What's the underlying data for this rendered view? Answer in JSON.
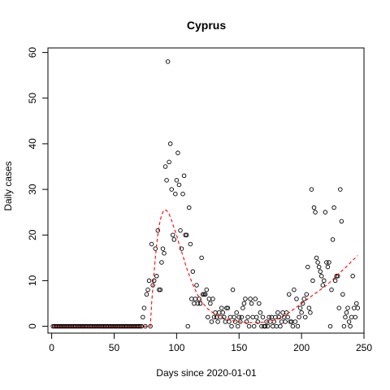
{
  "chart_data": {
    "type": "scatter",
    "title": "Cyprus",
    "xlabel": "Days since 2020-01-01",
    "ylabel": "Daily cases",
    "xlim": [
      -3,
      250
    ],
    "ylim": [
      -1.5,
      61
    ],
    "xticks": [
      0,
      50,
      100,
      150,
      200,
      250
    ],
    "yticks": [
      0,
      10,
      20,
      30,
      40,
      50,
      60
    ],
    "grid": false,
    "legend": "none",
    "colors": {
      "points": "#000000",
      "fit": "#ff0000",
      "axis": "#000000"
    },
    "series": [
      {
        "style": "points",
        "points": [
          [
            1,
            0
          ],
          [
            2,
            0
          ],
          [
            3,
            0
          ],
          [
            4,
            0
          ],
          [
            5,
            0
          ],
          [
            6,
            0
          ],
          [
            7,
            0
          ],
          [
            8,
            0
          ],
          [
            9,
            0
          ],
          [
            10,
            0
          ],
          [
            11,
            0
          ],
          [
            12,
            0
          ],
          [
            13,
            0
          ],
          [
            14,
            0
          ],
          [
            15,
            0
          ],
          [
            16,
            0
          ],
          [
            17,
            0
          ],
          [
            18,
            0
          ],
          [
            19,
            0
          ],
          [
            20,
            0
          ],
          [
            21,
            0
          ],
          [
            22,
            0
          ],
          [
            23,
            0
          ],
          [
            24,
            0
          ],
          [
            25,
            0
          ],
          [
            26,
            0
          ],
          [
            27,
            0
          ],
          [
            28,
            0
          ],
          [
            29,
            0
          ],
          [
            30,
            0
          ],
          [
            31,
            0
          ],
          [
            32,
            0
          ],
          [
            33,
            0
          ],
          [
            34,
            0
          ],
          [
            35,
            0
          ],
          [
            36,
            0
          ],
          [
            37,
            0
          ],
          [
            38,
            0
          ],
          [
            39,
            0
          ],
          [
            40,
            0
          ],
          [
            41,
            0
          ],
          [
            42,
            0
          ],
          [
            43,
            0
          ],
          [
            44,
            0
          ],
          [
            45,
            0
          ],
          [
            46,
            0
          ],
          [
            47,
            0
          ],
          [
            48,
            0
          ],
          [
            49,
            0
          ],
          [
            50,
            0
          ],
          [
            51,
            0
          ],
          [
            52,
            0
          ],
          [
            53,
            0
          ],
          [
            54,
            0
          ],
          [
            55,
            0
          ],
          [
            56,
            0
          ],
          [
            57,
            0
          ],
          [
            58,
            0
          ],
          [
            59,
            0
          ],
          [
            60,
            0
          ],
          [
            61,
            0
          ],
          [
            62,
            0
          ],
          [
            63,
            0
          ],
          [
            64,
            0
          ],
          [
            65,
            0
          ],
          [
            66,
            0
          ],
          [
            67,
            0
          ],
          [
            68,
            0
          ],
          [
            69,
            0
          ],
          [
            70,
            0
          ],
          [
            71,
            0
          ],
          [
            72,
            0
          ],
          [
            73,
            2
          ],
          [
            74,
            4
          ],
          [
            75,
            0
          ],
          [
            76,
            7
          ],
          [
            77,
            8
          ],
          [
            78,
            10
          ],
          [
            79,
            0
          ],
          [
            80,
            18
          ],
          [
            81,
            9
          ],
          [
            82,
            10
          ],
          [
            83,
            17
          ],
          [
            84,
            11
          ],
          [
            85,
            21
          ],
          [
            86,
            8
          ],
          [
            87,
            8
          ],
          [
            88,
            14
          ],
          [
            89,
            17
          ],
          [
            90,
            16
          ],
          [
            91,
            35
          ],
          [
            92,
            32
          ],
          [
            93,
            58
          ],
          [
            94,
            36
          ],
          [
            95,
            40
          ],
          [
            96,
            30
          ],
          [
            97,
            20
          ],
          [
            98,
            19
          ],
          [
            99,
            29
          ],
          [
            100,
            32
          ],
          [
            101,
            38
          ],
          [
            102,
            31
          ],
          [
            103,
            21
          ],
          [
            104,
            17
          ],
          [
            105,
            29
          ],
          [
            106,
            33
          ],
          [
            107,
            20
          ],
          [
            108,
            20
          ],
          [
            109,
            0
          ],
          [
            110,
            26
          ],
          [
            111,
            18
          ],
          [
            112,
            6
          ],
          [
            113,
            12
          ],
          [
            114,
            5
          ],
          [
            115,
            6
          ],
          [
            116,
            9
          ],
          [
            117,
            5
          ],
          [
            118,
            6
          ],
          [
            119,
            5
          ],
          [
            120,
            15
          ],
          [
            121,
            7
          ],
          [
            122,
            7
          ],
          [
            123,
            7
          ],
          [
            124,
            8
          ],
          [
            125,
            2
          ],
          [
            126,
            6
          ],
          [
            127,
            5
          ],
          [
            128,
            1
          ],
          [
            129,
            6
          ],
          [
            130,
            2
          ],
          [
            131,
            3
          ],
          [
            132,
            2
          ],
          [
            133,
            1
          ],
          [
            134,
            3
          ],
          [
            135,
            2
          ],
          [
            136,
            4
          ],
          [
            137,
            3
          ],
          [
            138,
            2
          ],
          [
            139,
            1
          ],
          [
            140,
            4
          ],
          [
            141,
            4
          ],
          [
            142,
            1
          ],
          [
            143,
            2
          ],
          [
            144,
            0
          ],
          [
            145,
            8
          ],
          [
            146,
            2
          ],
          [
            147,
            1
          ],
          [
            148,
            3
          ],
          [
            149,
            0
          ],
          [
            150,
            2
          ],
          [
            151,
            1
          ],
          [
            152,
            2
          ],
          [
            153,
            4
          ],
          [
            154,
            5
          ],
          [
            155,
            6
          ],
          [
            156,
            1
          ],
          [
            157,
            2
          ],
          [
            158,
            0
          ],
          [
            159,
            6
          ],
          [
            160,
            5
          ],
          [
            161,
            2
          ],
          [
            162,
            0
          ],
          [
            163,
            6
          ],
          [
            164,
            2
          ],
          [
            165,
            1
          ],
          [
            166,
            5
          ],
          [
            167,
            3
          ],
          [
            168,
            0
          ],
          [
            169,
            2
          ],
          [
            170,
            0
          ],
          [
            171,
            0
          ],
          [
            172,
            1
          ],
          [
            173,
            0
          ],
          [
            174,
            2
          ],
          [
            175,
            1
          ],
          [
            176,
            2
          ],
          [
            177,
            0
          ],
          [
            178,
            1
          ],
          [
            179,
            2
          ],
          [
            180,
            0
          ],
          [
            181,
            3
          ],
          [
            182,
            2
          ],
          [
            183,
            0
          ],
          [
            184,
            1
          ],
          [
            185,
            3
          ],
          [
            186,
            2
          ],
          [
            187,
            1
          ],
          [
            188,
            3
          ],
          [
            189,
            2
          ],
          [
            190,
            7
          ],
          [
            191,
            1
          ],
          [
            192,
            1
          ],
          [
            193,
            0
          ],
          [
            194,
            8
          ],
          [
            195,
            1
          ],
          [
            196,
            6
          ],
          [
            197,
            0
          ],
          [
            198,
            2
          ],
          [
            199,
            4
          ],
          [
            200,
            3
          ],
          [
            201,
            5
          ],
          [
            202,
            6
          ],
          [
            203,
            2
          ],
          [
            204,
            7
          ],
          [
            205,
            13
          ],
          [
            206,
            4
          ],
          [
            207,
            3
          ],
          [
            208,
            30
          ],
          [
            209,
            10
          ],
          [
            210,
            26
          ],
          [
            211,
            25
          ],
          [
            212,
            15
          ],
          [
            213,
            14
          ],
          [
            214,
            13
          ],
          [
            215,
            12
          ],
          [
            216,
            11
          ],
          [
            217,
            9
          ],
          [
            218,
            10
          ],
          [
            219,
            25
          ],
          [
            220,
            14
          ],
          [
            221,
            13
          ],
          [
            222,
            14
          ],
          [
            223,
            0
          ],
          [
            224,
            8
          ],
          [
            225,
            19
          ],
          [
            226,
            26
          ],
          [
            227,
            10
          ],
          [
            228,
            11
          ],
          [
            229,
            11
          ],
          [
            230,
            4
          ],
          [
            231,
            30
          ],
          [
            232,
            23
          ],
          [
            233,
            7
          ],
          [
            234,
            0
          ],
          [
            235,
            2
          ],
          [
            236,
            3
          ],
          [
            237,
            4
          ],
          [
            238,
            1
          ],
          [
            239,
            0
          ],
          [
            240,
            2
          ],
          [
            241,
            11
          ],
          [
            242,
            4
          ],
          [
            243,
            2
          ],
          [
            244,
            5
          ],
          [
            245,
            4
          ]
        ]
      },
      {
        "style": "dashed-line",
        "points": [
          [
            1,
            0
          ],
          [
            79,
            0
          ],
          [
            80,
            5
          ],
          [
            82,
            12
          ],
          [
            84,
            18
          ],
          [
            86,
            22
          ],
          [
            88,
            24.5
          ],
          [
            90,
            25.5
          ],
          [
            92,
            25.4
          ],
          [
            94,
            24.6
          ],
          [
            96,
            23.2
          ],
          [
            98,
            21.5
          ],
          [
            100,
            20
          ],
          [
            102,
            18
          ],
          [
            105,
            15.5
          ],
          [
            108,
            12.8
          ],
          [
            111,
            10.5
          ],
          [
            114,
            8.5
          ],
          [
            117,
            6.8
          ],
          [
            120,
            5.4
          ],
          [
            125,
            3.8
          ],
          [
            130,
            2.8
          ],
          [
            135,
            2.1
          ],
          [
            140,
            1.6
          ],
          [
            145,
            1.2
          ],
          [
            150,
            1.0
          ],
          [
            155,
            0.8
          ],
          [
            160,
            0.8
          ],
          [
            165,
            0.8
          ],
          [
            170,
            0.9
          ],
          [
            175,
            1.1
          ],
          [
            180,
            1.5
          ],
          [
            185,
            2.1
          ],
          [
            190,
            3.0
          ],
          [
            195,
            4.0
          ],
          [
            200,
            5.0
          ],
          [
            205,
            6.0
          ],
          [
            210,
            7.0
          ],
          [
            215,
            8.0
          ],
          [
            220,
            9.0
          ],
          [
            225,
            10.2
          ],
          [
            230,
            11.6
          ],
          [
            235,
            12.8
          ],
          [
            240,
            14.2
          ],
          [
            245,
            15.5
          ]
        ]
      }
    ]
  }
}
